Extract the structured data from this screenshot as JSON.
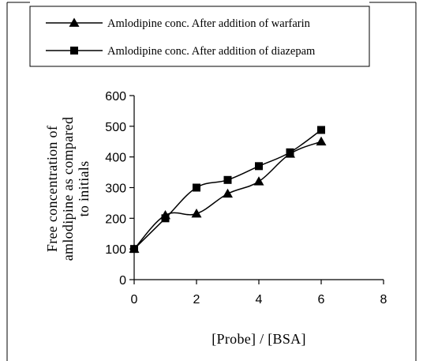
{
  "chart_data": {
    "type": "line",
    "xlabel": "[Probe] / [BSA]",
    "ylabel_lines": [
      "Free concentration of",
      "amlodipine as compared",
      "to initials"
    ],
    "xlim": [
      0,
      8
    ],
    "ylim": [
      0,
      600
    ],
    "xticks": [
      "0",
      "2",
      "4",
      "6",
      "8"
    ],
    "yticks": [
      "0",
      "100",
      "200",
      "300",
      "400",
      "500",
      "600"
    ],
    "grid": false,
    "legend_position": "top",
    "series": [
      {
        "name": "Amlodipine conc. After addition of warfarin",
        "marker": "triangle",
        "x": [
          0,
          1,
          2,
          3,
          4,
          5,
          6
        ],
        "y": [
          100,
          210,
          215,
          280,
          320,
          410,
          450
        ]
      },
      {
        "name": "Amlodipine conc. After addition of diazepam",
        "marker": "square",
        "x": [
          0,
          1,
          2,
          3,
          4,
          5,
          6
        ],
        "y": [
          100,
          200,
          300,
          325,
          370,
          415,
          488
        ]
      }
    ]
  }
}
